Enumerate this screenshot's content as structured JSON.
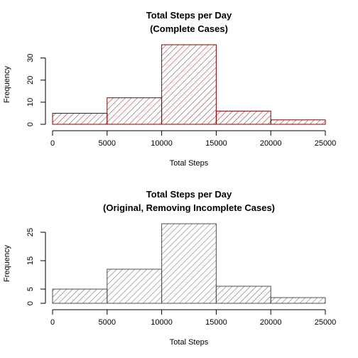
{
  "chart_data": [
    {
      "type": "bar",
      "subtype": "histogram",
      "title": "Total Steps per Day",
      "subtitle": "(Complete Cases)",
      "xlabel": "Total Steps",
      "ylabel": "Frequency",
      "bin_edges": [
        0,
        5000,
        10000,
        15000,
        20000,
        25000
      ],
      "values": [
        5,
        12,
        36,
        6,
        2
      ],
      "xlim": [
        0,
        25000
      ],
      "ylim": [
        0,
        36
      ],
      "xticks": [
        0,
        5000,
        10000,
        15000,
        20000,
        25000
      ],
      "yticks": [
        0,
        10,
        20,
        30
      ],
      "grid": false,
      "fill": "diagonal-hatch",
      "color": "#8b0000"
    },
    {
      "type": "bar",
      "subtype": "histogram",
      "title": "Total Steps per Day",
      "subtitle": "(Original, Removing Incomplete Cases)",
      "xlabel": "Total Steps",
      "ylabel": "Frequency",
      "bin_edges": [
        0,
        5000,
        10000,
        15000,
        20000,
        25000
      ],
      "values": [
        5,
        12,
        28,
        6,
        2
      ],
      "xlim": [
        0,
        25000
      ],
      "ylim": [
        0,
        28
      ],
      "xticks": [
        0,
        5000,
        10000,
        15000,
        20000,
        25000
      ],
      "yticks": [
        0,
        5,
        15,
        25
      ],
      "grid": false,
      "fill": "diagonal-hatch",
      "color": "#4d4d4d"
    }
  ]
}
